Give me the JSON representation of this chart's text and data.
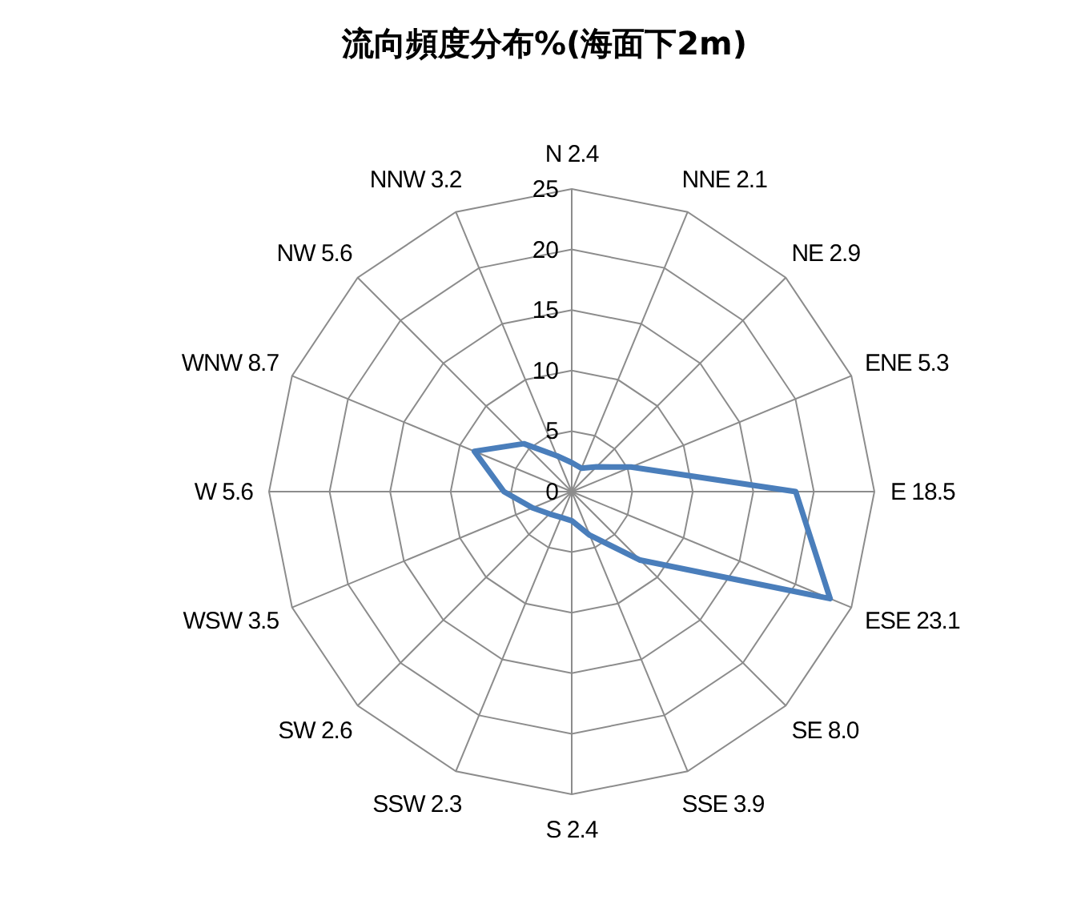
{
  "chart_data": {
    "type": "radar",
    "title": "流向頻度分布%(海面下2m)",
    "categories": [
      "N 2.4",
      "NNE 2.1",
      "NE 2.9",
      "ENE 5.3",
      "E 18.5",
      "ESE 23.1",
      "SE 8.0",
      "SSE 3.9",
      "S 2.4",
      "SSW 2.3",
      "SW 2.6",
      "WSW 3.5",
      "W 5.6",
      "WNW 8.7",
      "NW 5.6",
      "NNW 3.2"
    ],
    "series": [
      {
        "color": "#4a7ebb",
        "values": [
          2.4,
          2.1,
          2.9,
          5.3,
          18.5,
          23.1,
          8.0,
          3.9,
          2.4,
          2.3,
          2.6,
          3.5,
          5.6,
          8.7,
          5.6,
          3.2
        ]
      }
    ],
    "ylim": [
      0,
      25
    ],
    "yticks": [
      0,
      5,
      10,
      15,
      20,
      25
    ],
    "grid": true,
    "marker": "none",
    "line_style": "solid"
  }
}
